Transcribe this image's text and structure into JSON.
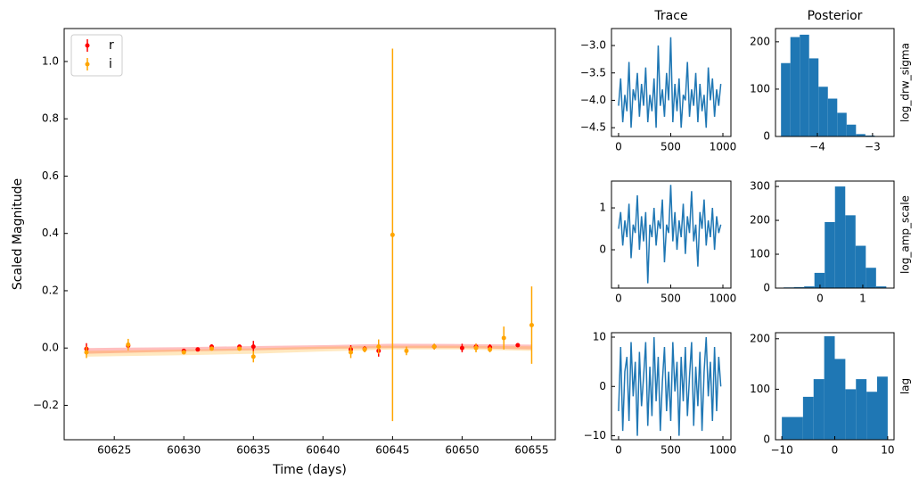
{
  "chart_data": [
    {
      "type": "errorbar",
      "xlabel": "Time (days)",
      "ylabel": "Scaled Magnitude",
      "xlim": [
        60621.4,
        60656.7
      ],
      "ylim": [
        -0.32,
        1.115
      ],
      "xticks": [
        60625,
        60630,
        60635,
        60640,
        60645,
        60650,
        60655
      ],
      "yticks": [
        {
          "value": -0.2,
          "label": "−0.2"
        },
        {
          "value": 0,
          "label": "0.0"
        },
        0.2,
        0.4,
        0.6,
        0.8,
        {
          "value": 1,
          "label": "1.0"
        }
      ],
      "legend": "upper left",
      "band_x": [
        60623,
        60630,
        60635,
        60640,
        60645,
        60650,
        60655
      ],
      "series": [
        {
          "name": "r",
          "color": "#ff0000",
          "x": [
            60623,
            60626,
            60630,
            60631,
            60632,
            60634,
            60635,
            60642,
            60643,
            60644,
            60648,
            60650,
            60651,
            60652,
            60654
          ],
          "values": [
            -0.003,
            0.008,
            -0.01,
            -0.005,
            0.005,
            0.005,
            0.005,
            -0.005,
            -0.003,
            -0.01,
            0.005,
            0.0,
            0.005,
            0.003,
            0.01
          ],
          "errors": [
            0.02,
            0.01,
            0.005,
            0.005,
            0.008,
            0.005,
            0.02,
            0.015,
            0.01,
            0.02,
            0.01,
            0.015,
            0.01,
            0.01,
            0.005
          ],
          "band_lower": [
            -0.02,
            -0.012,
            -0.008,
            -0.003,
            0,
            0,
            -0.005
          ],
          "band_upper": [
            0.0,
            0.003,
            0.007,
            0.01,
            0.015,
            0.014,
            0.012
          ]
        },
        {
          "name": "i",
          "color": "#ffa500",
          "x": [
            60623,
            60626,
            60630,
            60632,
            60634,
            60635,
            60642,
            60643,
            60644,
            60645,
            60646,
            60648,
            60651,
            60652,
            60653,
            60655
          ],
          "values": [
            -0.015,
            0.012,
            -0.015,
            -0.002,
            -0.002,
            -0.03,
            -0.015,
            -0.005,
            0.005,
            0.395,
            -0.01,
            0.005,
            0.0,
            -0.005,
            0.035,
            0.08
          ],
          "errors": [
            0.02,
            0.02,
            0.005,
            0.005,
            0.005,
            0.02,
            0.02,
            0.01,
            0.025,
            0.65,
            0.015,
            0.01,
            0.015,
            0.01,
            0.04,
            0.135
          ],
          "band_lower": [
            -0.03,
            -0.025,
            -0.02,
            -0.012,
            -0.005,
            -0.005,
            -0.01
          ],
          "band_upper": [
            -0.01,
            -0.005,
            -0.001,
            0.005,
            0.008,
            0.008,
            0.006
          ]
        }
      ]
    },
    {
      "type": "line",
      "title": "Trace",
      "color": "#1f77b4",
      "xlim": [
        -68,
        1077
      ],
      "ylim": [
        -4.66,
        -2.69
      ],
      "xticks": [
        0,
        500,
        1000
      ],
      "yticks": [
        {
          "value": -4.5,
          "label": "−4.5"
        },
        {
          "value": -4,
          "label": "−4.0"
        },
        {
          "value": -3.5,
          "label": "−3.5"
        },
        {
          "value": -3,
          "label": "−3.0"
        }
      ],
      "x": [
        0,
        20,
        40,
        60,
        80,
        100,
        120,
        140,
        160,
        180,
        200,
        220,
        240,
        260,
        280,
        300,
        320,
        340,
        360,
        380,
        400,
        420,
        440,
        460,
        480,
        500,
        520,
        540,
        560,
        580,
        600,
        620,
        640,
        660,
        680,
        700,
        720,
        740,
        760,
        780,
        800,
        820,
        840,
        860,
        880,
        900,
        920,
        940,
        960,
        980
      ],
      "values": [
        -4.1,
        -3.6,
        -4.4,
        -3.9,
        -4.2,
        -3.3,
        -4.5,
        -3.8,
        -4.0,
        -3.5,
        -4.3,
        -3.7,
        -4.1,
        -3.4,
        -4.4,
        -3.9,
        -4.2,
        -3.6,
        -4.5,
        -3.0,
        -4.1,
        -3.8,
        -4.3,
        -3.5,
        -4.0,
        -2.85,
        -4.4,
        -3.7,
        -4.2,
        -3.6,
        -4.5,
        -3.9,
        -4.0,
        -3.3,
        -4.3,
        -3.8,
        -4.1,
        -3.5,
        -4.4,
        -3.7,
        -4.2,
        -3.9,
        -4.5,
        -3.4,
        -4.0,
        -3.6,
        -4.3,
        -3.8,
        -4.1,
        -3.7
      ]
    },
    {
      "type": "hist",
      "title": "Posterior",
      "ylabel": "log_drw_sigma",
      "ylabel_side": "right",
      "color": "#1f77b4",
      "xlim": [
        -4.76,
        -2.61
      ],
      "ylim": [
        0,
        228
      ],
      "xticks": [
        {
          "value": -4,
          "label": "−4"
        },
        {
          "value": -3,
          "label": "−3"
        }
      ],
      "yticks": [
        0,
        100,
        200
      ],
      "bins": [
        -4.66,
        -4.49,
        -4.32,
        -4.15,
        -3.98,
        -3.81,
        -3.64,
        -3.47,
        -3.3,
        -3.13,
        -2.96
      ],
      "counts": [
        155,
        210,
        215,
        165,
        105,
        80,
        50,
        25,
        5,
        2
      ]
    },
    {
      "type": "line",
      "color": "#1f77b4",
      "xlim": [
        -68,
        1077
      ],
      "ylim": [
        -0.915,
        1.64
      ],
      "xticks": [
        0,
        500,
        1000
      ],
      "yticks": [
        0,
        1
      ],
      "x": [
        0,
        20,
        40,
        60,
        80,
        100,
        120,
        140,
        160,
        180,
        200,
        220,
        240,
        260,
        280,
        300,
        320,
        340,
        360,
        380,
        400,
        420,
        440,
        460,
        480,
        500,
        520,
        540,
        560,
        580,
        600,
        620,
        640,
        660,
        680,
        700,
        720,
        740,
        760,
        780,
        800,
        820,
        840,
        860,
        880,
        900,
        920,
        940,
        960,
        980
      ],
      "values": [
        0.5,
        0.9,
        0.1,
        0.7,
        0.3,
        1.1,
        -0.2,
        0.6,
        0.4,
        1.3,
        0.0,
        0.8,
        0.2,
        0.9,
        -0.8,
        0.6,
        0.3,
        1.0,
        0.1,
        0.7,
        0.5,
        1.2,
        -0.3,
        0.6,
        0.4,
        1.55,
        0.2,
        0.9,
        0.0,
        0.7,
        0.3,
        1.1,
        -0.1,
        0.8,
        0.4,
        1.4,
        0.2,
        0.6,
        -0.4,
        0.9,
        0.5,
        1.2,
        0.1,
        0.7,
        0.3,
        1.0,
        0.0,
        0.8,
        0.4,
        0.6
      ]
    },
    {
      "type": "hist",
      "ylabel": "log_amp_scale",
      "ylabel_side": "right",
      "color": "#1f77b4",
      "xlim": [
        -1.04,
        1.73
      ],
      "ylim": [
        0,
        316
      ],
      "xticks": [
        0,
        1
      ],
      "yticks": [
        0,
        100,
        200,
        300
      ],
      "bins": [
        -0.85,
        -0.61,
        -0.37,
        -0.13,
        0.11,
        0.35,
        0.59,
        0.83,
        1.07,
        1.31,
        1.55
      ],
      "counts": [
        2,
        3,
        5,
        45,
        195,
        300,
        215,
        125,
        60,
        5
      ]
    },
    {
      "type": "line",
      "color": "#1f77b4",
      "xlim": [
        -68,
        1077
      ],
      "ylim": [
        -10.8,
        10.9
      ],
      "xticks": [
        0,
        500,
        1000
      ],
      "yticks": [
        {
          "value": -10,
          "label": "−10"
        },
        0,
        10
      ],
      "x": [
        0,
        20,
        40,
        60,
        80,
        100,
        120,
        140,
        160,
        180,
        200,
        220,
        240,
        260,
        280,
        300,
        320,
        340,
        360,
        380,
        400,
        420,
        440,
        460,
        480,
        500,
        520,
        540,
        560,
        580,
        600,
        620,
        640,
        660,
        680,
        700,
        720,
        740,
        760,
        780,
        800,
        820,
        840,
        860,
        880,
        900,
        920,
        940,
        960,
        980
      ],
      "values": [
        -5,
        8,
        -9,
        3,
        6,
        -7,
        9,
        -2,
        5,
        -10,
        7,
        -4,
        2,
        9,
        -8,
        4,
        -6,
        10,
        -3,
        6,
        -9,
        1,
        8,
        -5,
        3,
        -7,
        9,
        -1,
        5,
        -10,
        6,
        -3,
        8,
        -6,
        2,
        9,
        -8,
        4,
        -4,
        7,
        -9,
        3,
        10,
        -2,
        5,
        -7,
        8,
        -5,
        6,
        0
      ]
    },
    {
      "type": "hist",
      "ylabel": "lag",
      "ylabel_side": "right",
      "color": "#1f77b4",
      "xlim": [
        -11.2,
        11.2
      ],
      "ylim": [
        0,
        212
      ],
      "xticks": [
        {
          "value": -10,
          "label": "−10"
        },
        0,
        10
      ],
      "yticks": [
        0,
        100,
        200
      ],
      "bins": [
        -10,
        -8,
        -6,
        -4,
        -2,
        0,
        2,
        4,
        6,
        8,
        10
      ],
      "counts": [
        45,
        45,
        85,
        120,
        205,
        160,
        100,
        120,
        95,
        125
      ]
    }
  ]
}
